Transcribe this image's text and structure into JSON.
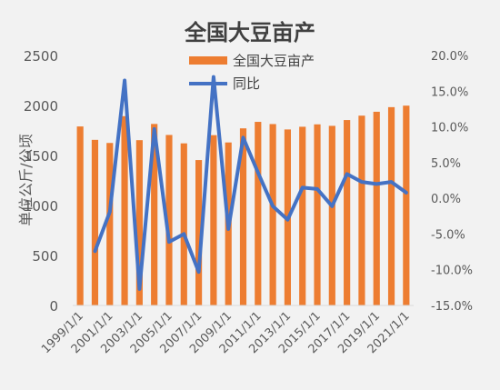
{
  "chart_data": {
    "type": "bar+line",
    "title": "全国大豆亩产",
    "ylabel": "单位公斤/公顷",
    "xlabel": "",
    "categories": [
      "1999/1/1",
      "2000/1/1",
      "2001/1/1",
      "2002/1/1",
      "2003/1/1",
      "2004/1/1",
      "2005/1/1",
      "2006/1/1",
      "2007/1/1",
      "2008/1/1",
      "2009/1/1",
      "2010/1/1",
      "2011/1/1",
      "2012/1/1",
      "2013/1/1",
      "2014/1/1",
      "2015/1/1",
      "2016/1/1",
      "2017/1/1",
      "2018/1/1",
      "2019/1/1",
      "2020/1/1",
      "2021/1/1"
    ],
    "x_tick_labels": [
      "1999/1/1",
      "2001/1/1",
      "2003/1/1",
      "2005/1/1",
      "2007/1/1",
      "2009/1/1",
      "2011/1/1",
      "2013/1/1",
      "2015/1/1",
      "2017/1/1",
      "2019/1/1",
      "2021/1/1"
    ],
    "series": [
      {
        "name": "全国大豆亩产",
        "type": "bar",
        "axis": "left",
        "color": "#ed7d31",
        "values": [
          1790,
          1656,
          1625,
          1893,
          1653,
          1815,
          1705,
          1621,
          1454,
          1703,
          1630,
          1771,
          1836,
          1814,
          1760,
          1787,
          1811,
          1796,
          1854,
          1898,
          1937,
          1983,
          1998
        ]
      },
      {
        "name": "同比",
        "type": "line",
        "axis": "right",
        "color": "#4472c4",
        "values": [
          null,
          -7.4,
          -1.9,
          16.5,
          -12.7,
          9.7,
          -6.1,
          -5.0,
          -10.3,
          17.0,
          -4.3,
          8.5,
          3.6,
          -1.1,
          -3.0,
          1.5,
          1.3,
          -1.1,
          3.4,
          2.3,
          2.0,
          2.3,
          0.8
        ]
      }
    ],
    "y_left": {
      "ticks": [
        "0",
        "500",
        "1000",
        "1500",
        "2000",
        "2500"
      ],
      "min": 0,
      "max": 2500
    },
    "y_right": {
      "ticks": [
        "-15.0%",
        "-10.0%",
        "-5.0%",
        "0.0%",
        "5.0%",
        "10.0%",
        "15.0%",
        "20.0%"
      ],
      "min": -15,
      "max": 20
    },
    "grid": false,
    "legend_position": "top"
  }
}
